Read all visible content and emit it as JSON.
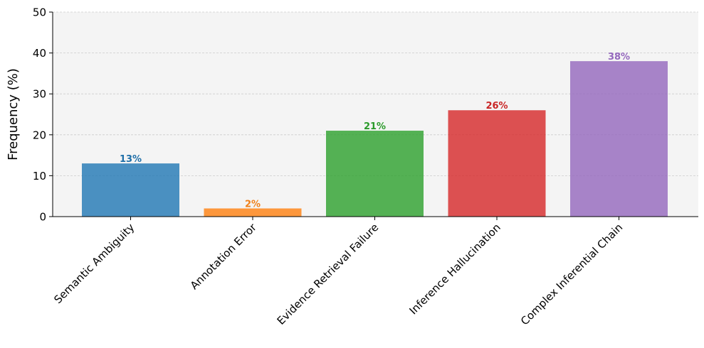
{
  "chart_data": {
    "type": "bar",
    "title": "",
    "xlabel": "",
    "ylabel": "Frequency (%)",
    "ylim": [
      0,
      50
    ],
    "yticks": [
      0,
      10,
      20,
      30,
      40,
      50
    ],
    "grid": true,
    "categories": [
      "Semantic Ambiguity",
      "Annotation Error",
      "Evidence Retrieval Failure",
      "Inference Hallucination",
      "Complex Inferential Chain"
    ],
    "values": [
      13,
      2,
      21,
      26,
      38
    ],
    "data_labels": [
      "13%",
      "2%",
      "21%",
      "26%",
      "38%"
    ],
    "colors": [
      "#1f77b4",
      "#ff7f0e",
      "#2ca02c",
      "#d62728",
      "#9467bd"
    ],
    "label_colors": [
      "#1f6fa8",
      "#f0801a",
      "#2a9a2a",
      "#c92525",
      "#9467bd"
    ],
    "plot_background": "#f4f4f4"
  }
}
